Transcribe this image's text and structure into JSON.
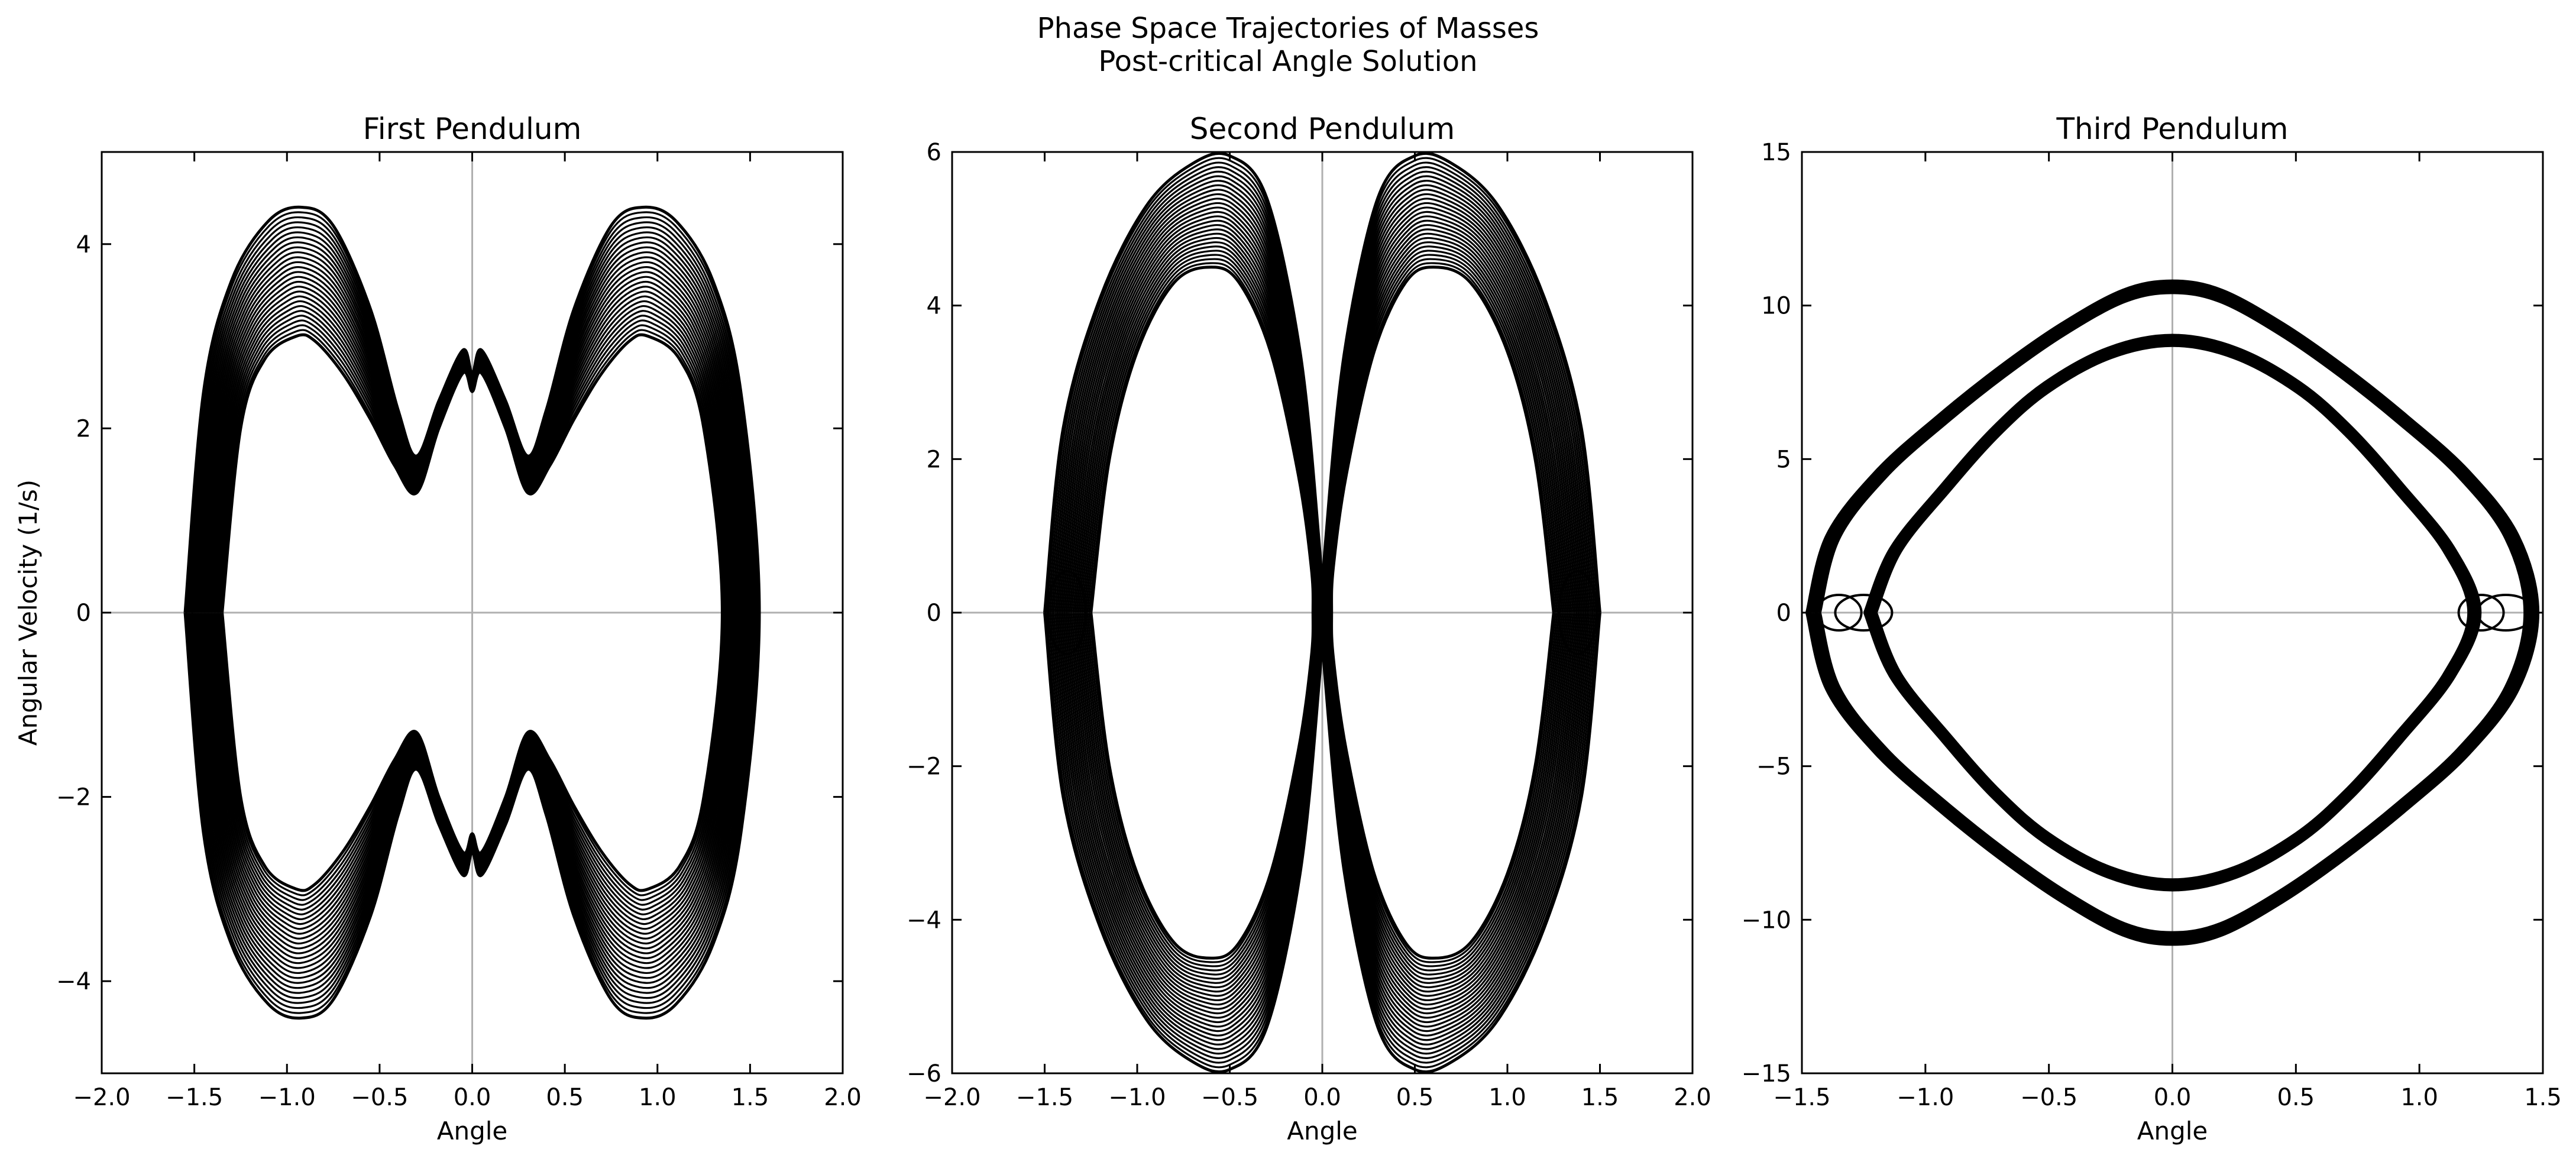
{
  "figure": {
    "title_line1": "Phase Space Trajectories of Masses",
    "title_line2": "Post-critical Angle Solution"
  },
  "chart_data": [
    {
      "type": "line",
      "title": "First Pendulum",
      "xlabel": "Angle",
      "ylabel": "Angular Velocity (1/s)",
      "xlim": [
        -2.0,
        2.0
      ],
      "ylim": [
        -5,
        5
      ],
      "xticks": [
        "−2.0",
        "−1.5",
        "−1.0",
        "−0.5",
        "0.0",
        "0.5",
        "1.0",
        "1.5",
        "2.0"
      ],
      "yticks": [
        "−4",
        "−2",
        "0",
        "2",
        "4"
      ],
      "xtick_values": [
        -2.0,
        -1.5,
        -1.0,
        -0.5,
        0.0,
        0.5,
        1.0,
        1.5,
        2.0
      ],
      "ytick_values": [
        -4,
        -2,
        0,
        2,
        4
      ],
      "reference_lines": {
        "x": 0,
        "y": 0
      },
      "grid": false,
      "line_color": "#000000",
      "reference_line_color": "#b0b0b0",
      "series": [
        {
          "x": [
            -1.55,
            -1.45,
            -1.3,
            -1.1,
            -0.92,
            -0.75,
            -0.55,
            -0.4,
            -0.3,
            -0.18,
            -0.05,
            0.0,
            0.05,
            0.18,
            0.3,
            0.4,
            0.55,
            0.75,
            0.92,
            1.1,
            1.3,
            1.45,
            1.55,
            1.45,
            1.3,
            1.1,
            0.92,
            0.75,
            0.55,
            0.4,
            0.3,
            0.18,
            0.05,
            0.0,
            -0.05,
            -0.18,
            -0.3,
            -0.4,
            -0.55,
            -0.75,
            -0.92,
            -1.1,
            -1.3,
            -1.45,
            -1.55
          ],
          "y": [
            0.0,
            2.4,
            3.6,
            4.25,
            4.4,
            4.2,
            3.3,
            2.2,
            1.7,
            2.3,
            2.85,
            2.6,
            2.85,
            2.3,
            1.7,
            2.2,
            3.3,
            4.2,
            4.4,
            4.25,
            3.6,
            2.4,
            0.0,
            -2.4,
            -3.6,
            -4.25,
            -4.4,
            -4.2,
            -3.3,
            -2.2,
            -1.7,
            -2.3,
            -2.85,
            -2.6,
            -2.85,
            -2.3,
            -1.7,
            -2.2,
            -3.3,
            -4.2,
            -4.4,
            -4.25,
            -3.6,
            -2.4,
            0.0
          ]
        },
        {
          "x": [
            -1.35,
            -1.25,
            -1.12,
            -0.95,
            -0.85,
            -0.7,
            -0.55,
            -0.42,
            -0.3,
            -0.18,
            -0.05,
            0.0,
            0.05,
            0.18,
            0.3,
            0.42,
            0.55,
            0.7,
            0.85,
            0.95,
            1.12,
            1.25,
            1.35,
            1.25,
            1.12,
            0.95,
            0.85,
            0.7,
            0.55,
            0.42,
            0.3,
            0.18,
            0.05,
            0.0,
            -0.05,
            -0.18,
            -0.3,
            -0.42,
            -0.55,
            -0.7,
            -0.85,
            -0.95,
            -1.12,
            -1.25,
            -1.35
          ],
          "y": [
            0.0,
            2.0,
            2.75,
            3.0,
            2.95,
            2.6,
            2.1,
            1.6,
            1.3,
            2.0,
            2.6,
            2.4,
            2.6,
            2.0,
            1.3,
            1.6,
            2.1,
            2.6,
            2.95,
            3.0,
            2.75,
            2.0,
            0.0,
            -2.0,
            -2.75,
            -3.0,
            -2.95,
            -2.6,
            -2.1,
            -1.6,
            -1.3,
            -2.0,
            -2.6,
            -2.4,
            -2.6,
            -2.0,
            -1.3,
            -1.6,
            -2.1,
            -2.6,
            -2.95,
            -3.0,
            -2.75,
            -2.0,
            0.0
          ]
        }
      ]
    },
    {
      "type": "line",
      "title": "Second Pendulum",
      "xlabel": "Angle",
      "ylabel": "",
      "xlim": [
        -2.0,
        2.0
      ],
      "ylim": [
        -6,
        6
      ],
      "xticks": [
        "−2.0",
        "−1.5",
        "−1.0",
        "−0.5",
        "0.0",
        "0.5",
        "1.0",
        "1.5",
        "2.0"
      ],
      "yticks": [
        "−6",
        "−4",
        "−2",
        "0",
        "2",
        "4",
        "6"
      ],
      "xtick_values": [
        -2.0,
        -1.5,
        -1.0,
        -0.5,
        0.0,
        0.5,
        1.0,
        1.5,
        2.0
      ],
      "ytick_values": [
        -6,
        -4,
        -2,
        0,
        2,
        4,
        6
      ],
      "reference_lines": {
        "x": 0,
        "y": 0
      },
      "grid": false,
      "line_color": "#000000",
      "reference_line_color": "#b0b0b0",
      "series": [
        {
          "x": [
            -1.5,
            -1.4,
            -1.2,
            -0.95,
            -0.7,
            -0.5,
            -0.3,
            -0.12,
            -0.02,
            0.0,
            -0.02,
            -0.12,
            -0.3,
            -0.5,
            -0.7,
            -0.95,
            -1.2,
            -1.4,
            -1.5
          ],
          "y": [
            0.0,
            2.4,
            4.1,
            5.3,
            5.85,
            5.95,
            5.4,
            3.4,
            1.0,
            0.0,
            -1.0,
            -3.4,
            -5.4,
            -5.95,
            -5.85,
            -5.3,
            -4.1,
            -2.4,
            0.0
          ]
        },
        {
          "x": [
            -1.25,
            -1.15,
            -1.0,
            -0.8,
            -0.6,
            -0.45,
            -0.28,
            -0.13,
            -0.06,
            -0.05,
            -0.06,
            -0.13,
            -0.28,
            -0.45,
            -0.6,
            -0.8,
            -1.0,
            -1.15,
            -1.25
          ],
          "y": [
            0.0,
            2.0,
            3.4,
            4.3,
            4.5,
            4.3,
            3.4,
            1.8,
            0.6,
            0.0,
            -0.6,
            -1.8,
            -3.4,
            -4.3,
            -4.5,
            -4.3,
            -3.4,
            -2.0,
            0.0
          ]
        },
        {
          "x": [
            1.5,
            1.4,
            1.2,
            0.95,
            0.7,
            0.5,
            0.3,
            0.12,
            0.02,
            0.0,
            0.02,
            0.12,
            0.3,
            0.5,
            0.7,
            0.95,
            1.2,
            1.4,
            1.5
          ],
          "y": [
            0.0,
            2.4,
            4.1,
            5.3,
            5.85,
            5.95,
            5.4,
            3.4,
            1.0,
            0.0,
            -1.0,
            -3.4,
            -5.4,
            -5.95,
            -5.85,
            -5.3,
            -4.1,
            -2.4,
            0.0
          ]
        },
        {
          "x": [
            1.25,
            1.15,
            1.0,
            0.8,
            0.6,
            0.45,
            0.28,
            0.13,
            0.06,
            0.05,
            0.06,
            0.13,
            0.28,
            0.45,
            0.6,
            0.8,
            1.0,
            1.15,
            1.25
          ],
          "y": [
            0.0,
            2.0,
            3.4,
            4.3,
            4.5,
            4.3,
            3.4,
            1.8,
            0.6,
            0.0,
            -0.6,
            -1.8,
            -3.4,
            -4.3,
            -4.5,
            -4.3,
            -3.4,
            -2.0,
            0.0
          ]
        }
      ]
    },
    {
      "type": "line",
      "title": "Third Pendulum",
      "xlabel": "Angle",
      "ylabel": "",
      "xlim": [
        -1.5,
        1.5
      ],
      "ylim": [
        -15,
        15
      ],
      "xticks": [
        "−1.5",
        "−1.0",
        "−0.5",
        "0.0",
        "0.5",
        "1.0",
        "1.5"
      ],
      "yticks": [
        "−15",
        "−10",
        "−5",
        "0",
        "5",
        "10",
        "15"
      ],
      "xtick_values": [
        -1.5,
        -1.0,
        -0.5,
        0.0,
        0.5,
        1.0,
        1.5
      ],
      "ytick_values": [
        -15,
        -10,
        -5,
        0,
        5,
        10,
        15
      ],
      "reference_lines": {
        "x": 0,
        "y": 0
      },
      "grid": false,
      "line_color": "#000000",
      "reference_line_color": "#b0b0b0",
      "series": [
        {
          "x": [
            -1.48,
            -1.4,
            -1.2,
            -0.95,
            -0.7,
            -0.45,
            -0.2,
            0.0,
            0.2,
            0.45,
            0.7,
            0.95,
            1.2,
            1.4,
            1.48,
            1.4,
            1.2,
            0.95,
            0.7,
            0.45,
            0.2,
            0.0,
            -0.2,
            -0.45,
            -0.7,
            -0.95,
            -1.2,
            -1.4,
            -1.48
          ],
          "y": [
            0.0,
            -2.5,
            -4.6,
            -6.4,
            -8.0,
            -9.4,
            -10.5,
            -10.8,
            -10.5,
            -9.4,
            -8.0,
            -6.4,
            -4.6,
            -2.5,
            0.0,
            2.5,
            4.6,
            6.4,
            8.0,
            9.4,
            10.5,
            10.8,
            10.5,
            9.4,
            8.0,
            6.4,
            4.6,
            2.5,
            0.0
          ]
        },
        {
          "x": [
            -1.2,
            -1.1,
            -0.9,
            -0.7,
            -0.5,
            -0.25,
            0.0,
            0.25,
            0.5,
            0.7,
            0.9,
            1.1,
            1.2,
            1.1,
            0.9,
            0.7,
            0.5,
            0.25,
            0.0,
            -0.25,
            -0.5,
            -0.7,
            -0.9,
            -1.1,
            -1.2
          ],
          "y": [
            0.0,
            -2.0,
            -4.0,
            -5.8,
            -7.2,
            -8.3,
            -8.7,
            -8.3,
            -7.2,
            -5.8,
            -4.0,
            -2.0,
            0.0,
            2.0,
            4.0,
            5.8,
            7.2,
            8.3,
            8.7,
            8.3,
            7.2,
            5.8,
            4.0,
            2.0,
            0.0
          ]
        }
      ]
    }
  ]
}
